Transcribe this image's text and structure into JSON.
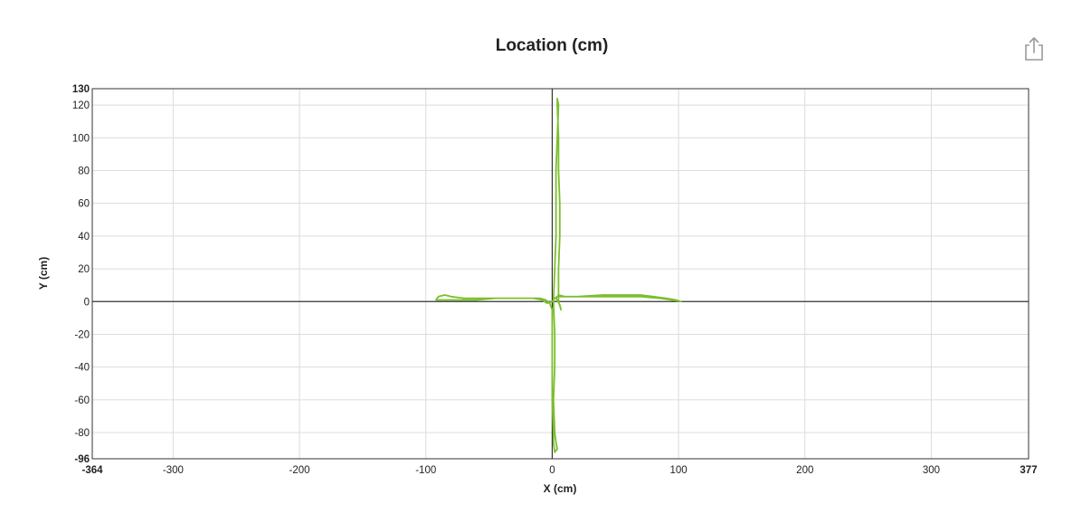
{
  "header": {
    "title": "Location (cm)",
    "share_icon": "share-icon"
  },
  "colors": {
    "series": "#7bbf2e",
    "grid": "#dcdcdc",
    "axis": "#333333"
  },
  "chart_data": {
    "type": "line",
    "title": "Location (cm)",
    "xlabel": "X (cm)",
    "ylabel": "Y (cm)",
    "xlim": [
      -364,
      377
    ],
    "ylim": [
      -96,
      130
    ],
    "x_ticks": [
      -300,
      -200,
      -100,
      0,
      100,
      200,
      300
    ],
    "y_ticks": [
      -80,
      -60,
      -40,
      -20,
      0,
      20,
      40,
      60,
      80,
      100,
      120
    ],
    "x_tick_labels": [
      "-364",
      "-300",
      "-200",
      "-100",
      "0",
      "100",
      "200",
      "300",
      "377"
    ],
    "y_tick_labels": [
      "130",
      "120",
      "100",
      "80",
      "60",
      "40",
      "20",
      "0",
      "-20",
      "-40",
      "-60",
      "-80",
      "-96"
    ],
    "grid": true,
    "series": [
      {
        "points": [
          [
            0,
            0
          ],
          [
            2,
            2
          ],
          [
            4,
            3
          ],
          [
            20,
            3
          ],
          [
            40,
            4
          ],
          [
            60,
            4
          ],
          [
            70,
            4
          ],
          [
            80,
            3
          ],
          [
            90,
            2
          ],
          [
            98,
            1
          ],
          [
            102,
            0
          ],
          [
            95,
            1
          ],
          [
            85,
            2
          ],
          [
            70,
            3
          ],
          [
            50,
            3
          ],
          [
            30,
            3
          ],
          [
            10,
            3
          ],
          [
            5,
            4
          ],
          [
            3,
            2
          ],
          [
            6,
            -2
          ],
          [
            7,
            -5
          ],
          [
            5,
            0
          ],
          [
            5,
            20
          ],
          [
            6,
            40
          ],
          [
            6,
            60
          ],
          [
            5,
            80
          ],
          [
            5,
            100
          ],
          [
            4,
            120
          ],
          [
            4,
            124
          ],
          [
            5,
            120
          ],
          [
            4,
            100
          ],
          [
            3,
            80
          ],
          [
            3,
            60
          ],
          [
            3,
            40
          ],
          [
            2,
            20
          ],
          [
            1,
            0
          ],
          [
            2,
            -20
          ],
          [
            2,
            -40
          ],
          [
            1,
            -60
          ],
          [
            2,
            -80
          ],
          [
            3,
            -86
          ],
          [
            4,
            -90
          ],
          [
            2,
            -92
          ],
          [
            1,
            -86
          ],
          [
            1,
            -80
          ],
          [
            0,
            -60
          ],
          [
            0,
            -40
          ],
          [
            0,
            -20
          ],
          [
            0,
            -5
          ],
          [
            -2,
            -1
          ],
          [
            -5,
            1
          ],
          [
            -10,
            2
          ],
          [
            -20,
            2
          ],
          [
            -30,
            2
          ],
          [
            -45,
            2
          ],
          [
            -60,
            1
          ],
          [
            -80,
            1
          ],
          [
            -88,
            1
          ],
          [
            -92,
            1
          ],
          [
            -90,
            3
          ],
          [
            -85,
            4
          ],
          [
            -80,
            3
          ],
          [
            -70,
            2
          ],
          [
            -50,
            2
          ],
          [
            -30,
            2
          ],
          [
            -15,
            2
          ],
          [
            -8,
            1
          ],
          [
            -4,
            -1
          ],
          [
            0,
            0
          ]
        ]
      }
    ]
  }
}
